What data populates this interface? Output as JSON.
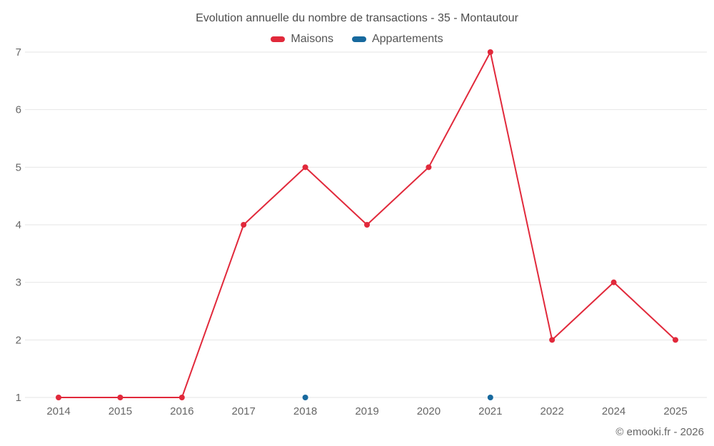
{
  "copyright": "© emooki.fr - 2026",
  "axis": {
    "y_tick_color": "#666666",
    "x_tick_color": "#666666",
    "gridline_color": "#e6e6e6"
  },
  "chart_data": {
    "type": "line",
    "title": "Evolution annuelle du nombre de transactions - 35 - Montautour",
    "categories": [
      "2014",
      "2015",
      "2016",
      "2017",
      "2018",
      "2019",
      "2020",
      "2021",
      "2022",
      "2024",
      "2025"
    ],
    "series": [
      {
        "name": "Maisons",
        "color": "#e1293b",
        "draw_line": true,
        "values": [
          1,
          1,
          1,
          4,
          5,
          4,
          5,
          7,
          2,
          3,
          2
        ]
      },
      {
        "name": "Appartements",
        "color": "#17699e",
        "draw_line": false,
        "values": [
          null,
          null,
          null,
          null,
          1,
          null,
          null,
          1,
          null,
          null,
          null
        ]
      }
    ],
    "xlabel": "",
    "ylabel": "",
    "ylim": [
      1,
      7
    ],
    "yticks": [
      1,
      2,
      3,
      4,
      5,
      6,
      7
    ],
    "grid": true,
    "legend_position": "top"
  }
}
